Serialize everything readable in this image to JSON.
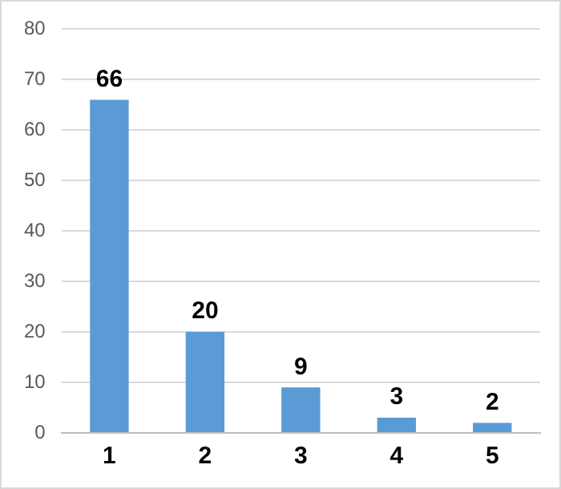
{
  "chart_data": {
    "type": "bar",
    "categories": [
      "1",
      "2",
      "3",
      "4",
      "5"
    ],
    "values": [
      66,
      20,
      9,
      3,
      2
    ],
    "color": "#5b9bd5",
    "ylim": [
      0,
      80
    ],
    "yticks": [
      0,
      10,
      20,
      30,
      40,
      50,
      60,
      70,
      80
    ],
    "grid": "y",
    "data_labels": true,
    "legend": false
  }
}
